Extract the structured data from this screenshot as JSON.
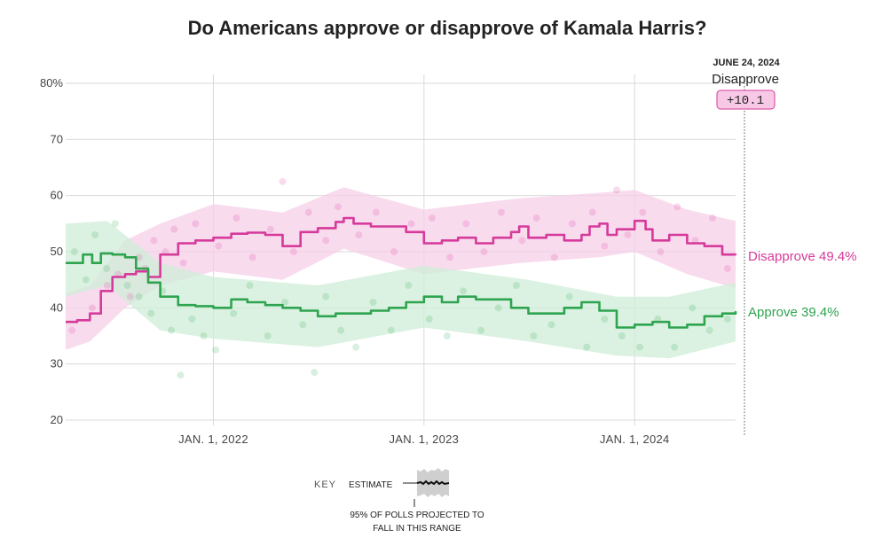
{
  "chart_data": {
    "type": "line",
    "title": "Do Americans approve or disapprove of Kamala Harris?",
    "y_ticks": [
      "20",
      "30",
      "40",
      "50",
      "60",
      "70",
      "80%"
    ],
    "ylim": [
      20,
      80
    ],
    "x_ticks": [
      "JAN. 1, 2022",
      "JAN. 1, 2023",
      "JAN. 1, 2024"
    ],
    "xlim": [
      "2021-04-20",
      "2024-06-24"
    ],
    "grid": true,
    "series": [
      {
        "name": "Disapprove",
        "color": "#d63a9a",
        "band_color": "#f7cfe8",
        "end_label": "Disapprove 49.4%",
        "points": [
          [
            "2021-04-20",
            37.5
          ],
          [
            "2021-05-10",
            37.8
          ],
          [
            "2021-06-01",
            39
          ],
          [
            "2021-06-20",
            43
          ],
          [
            "2021-07-10",
            45.5
          ],
          [
            "2021-08-01",
            46
          ],
          [
            "2021-08-20",
            46.5
          ],
          [
            "2021-09-10",
            45.5
          ],
          [
            "2021-10-01",
            49.5
          ],
          [
            "2021-11-01",
            51.5
          ],
          [
            "2021-12-01",
            52
          ],
          [
            "2022-01-01",
            52.5
          ],
          [
            "2022-02-01",
            53.2
          ],
          [
            "2022-03-01",
            53.4
          ],
          [
            "2022-04-01",
            53
          ],
          [
            "2022-05-01",
            51
          ],
          [
            "2022-06-01",
            53.5
          ],
          [
            "2022-07-01",
            54.2
          ],
          [
            "2022-08-01",
            55.3
          ],
          [
            "2022-08-15",
            56
          ],
          [
            "2022-09-01",
            55
          ],
          [
            "2022-10-01",
            54.5
          ],
          [
            "2022-11-01",
            54.5
          ],
          [
            "2022-12-01",
            53.5
          ],
          [
            "2023-01-01",
            51.5
          ],
          [
            "2023-02-01",
            52
          ],
          [
            "2023-03-01",
            52.5
          ],
          [
            "2023-04-01",
            51.5
          ],
          [
            "2023-05-01",
            52.5
          ],
          [
            "2023-06-01",
            53.5
          ],
          [
            "2023-06-15",
            54.5
          ],
          [
            "2023-07-01",
            52.5
          ],
          [
            "2023-08-01",
            53
          ],
          [
            "2023-09-01",
            52
          ],
          [
            "2023-10-01",
            53
          ],
          [
            "2023-10-15",
            54.5
          ],
          [
            "2023-11-01",
            55
          ],
          [
            "2023-11-15",
            53
          ],
          [
            "2023-12-01",
            54
          ],
          [
            "2024-01-01",
            55.5
          ],
          [
            "2024-01-20",
            54
          ],
          [
            "2024-02-01",
            52
          ],
          [
            "2024-03-01",
            53
          ],
          [
            "2024-04-01",
            51.5
          ],
          [
            "2024-05-01",
            51
          ],
          [
            "2024-06-01",
            49.5
          ],
          [
            "2024-06-24",
            49.4
          ]
        ],
        "band_lower": [
          [
            "2021-04-20",
            32.5
          ],
          [
            "2021-06-01",
            34
          ],
          [
            "2021-08-01",
            40
          ],
          [
            "2021-10-01",
            44
          ],
          [
            "2022-01-01",
            46.5
          ],
          [
            "2022-05-01",
            45
          ],
          [
            "2022-08-15",
            50.5
          ],
          [
            "2023-01-01",
            46
          ],
          [
            "2023-06-15",
            48
          ],
          [
            "2023-11-01",
            49
          ],
          [
            "2024-01-01",
            50
          ],
          [
            "2024-04-01",
            46
          ],
          [
            "2024-06-24",
            43.5
          ]
        ],
        "band_upper": [
          [
            "2021-04-20",
            42.5
          ],
          [
            "2021-06-01",
            44
          ],
          [
            "2021-08-01",
            52
          ],
          [
            "2021-10-01",
            55
          ],
          [
            "2022-01-01",
            58.5
          ],
          [
            "2022-05-01",
            57
          ],
          [
            "2022-08-15",
            61.5
          ],
          [
            "2023-01-01",
            57.5
          ],
          [
            "2023-06-15",
            59.5
          ],
          [
            "2023-11-01",
            60.5
          ],
          [
            "2024-01-01",
            61
          ],
          [
            "2024-04-01",
            57.5
          ],
          [
            "2024-06-24",
            55.5
          ]
        ],
        "polls": [
          [
            "2021-05-01",
            36
          ],
          [
            "2021-06-05",
            40
          ],
          [
            "2021-07-01",
            44
          ],
          [
            "2021-07-20",
            46
          ],
          [
            "2021-08-10",
            42
          ],
          [
            "2021-08-25",
            49
          ],
          [
            "2021-09-05",
            47
          ],
          [
            "2021-09-20",
            52
          ],
          [
            "2021-10-10",
            50
          ],
          [
            "2021-10-25",
            54
          ],
          [
            "2021-11-10",
            48
          ],
          [
            "2021-12-01",
            55
          ],
          [
            "2022-01-10",
            51
          ],
          [
            "2022-02-10",
            56
          ],
          [
            "2022-03-10",
            49
          ],
          [
            "2022-04-10",
            54
          ],
          [
            "2022-05-01",
            62.5
          ],
          [
            "2022-05-20",
            50
          ],
          [
            "2022-06-15",
            57
          ],
          [
            "2022-07-15",
            52
          ],
          [
            "2022-08-05",
            58
          ],
          [
            "2022-09-10",
            53
          ],
          [
            "2022-10-10",
            57
          ],
          [
            "2022-11-10",
            50
          ],
          [
            "2022-12-10",
            55
          ],
          [
            "2023-01-15",
            56
          ],
          [
            "2023-02-15",
            49
          ],
          [
            "2023-03-15",
            55
          ],
          [
            "2023-04-15",
            50
          ],
          [
            "2023-05-15",
            57
          ],
          [
            "2023-06-20",
            52
          ],
          [
            "2023-07-15",
            56
          ],
          [
            "2023-08-15",
            49
          ],
          [
            "2023-09-15",
            55
          ],
          [
            "2023-10-20",
            57
          ],
          [
            "2023-11-10",
            51
          ],
          [
            "2023-12-01",
            61
          ],
          [
            "2023-12-20",
            53
          ],
          [
            "2024-01-15",
            57
          ],
          [
            "2024-02-15",
            50
          ],
          [
            "2024-03-15",
            58
          ],
          [
            "2024-04-15",
            52
          ],
          [
            "2024-05-15",
            56
          ],
          [
            "2024-06-10",
            47
          ]
        ]
      },
      {
        "name": "Approve",
        "color": "#2ea44f",
        "band_color": "#cfeed8",
        "end_label": "Approve 39.4%",
        "points": [
          [
            "2021-04-20",
            48
          ],
          [
            "2021-05-10",
            48
          ],
          [
            "2021-05-20",
            49.5
          ],
          [
            "2021-06-05",
            48
          ],
          [
            "2021-06-20",
            49.7
          ],
          [
            "2021-07-10",
            49.5
          ],
          [
            "2021-08-01",
            49
          ],
          [
            "2021-08-20",
            47
          ],
          [
            "2021-09-10",
            44.5
          ],
          [
            "2021-10-01",
            42
          ],
          [
            "2021-11-01",
            40.5
          ],
          [
            "2021-12-01",
            40.3
          ],
          [
            "2022-01-01",
            40
          ],
          [
            "2022-02-01",
            41.5
          ],
          [
            "2022-03-01",
            41
          ],
          [
            "2022-04-01",
            40.5
          ],
          [
            "2022-05-01",
            40
          ],
          [
            "2022-06-01",
            39.5
          ],
          [
            "2022-07-01",
            38.5
          ],
          [
            "2022-08-01",
            39
          ],
          [
            "2022-09-01",
            39
          ],
          [
            "2022-10-01",
            39.5
          ],
          [
            "2022-11-01",
            40
          ],
          [
            "2022-12-01",
            41
          ],
          [
            "2023-01-01",
            42
          ],
          [
            "2023-02-01",
            41
          ],
          [
            "2023-03-01",
            42
          ],
          [
            "2023-04-01",
            41.5
          ],
          [
            "2023-05-01",
            41.5
          ],
          [
            "2023-06-01",
            40
          ],
          [
            "2023-07-01",
            39
          ],
          [
            "2023-08-01",
            39
          ],
          [
            "2023-09-01",
            40
          ],
          [
            "2023-10-01",
            41
          ],
          [
            "2023-11-01",
            39.5
          ],
          [
            "2023-12-01",
            36.5
          ],
          [
            "2024-01-01",
            37
          ],
          [
            "2024-02-01",
            37.5
          ],
          [
            "2024-03-01",
            36.5
          ],
          [
            "2024-04-01",
            37
          ],
          [
            "2024-05-01",
            38.5
          ],
          [
            "2024-06-01",
            39
          ],
          [
            "2024-06-24",
            39.4
          ]
        ],
        "band_lower": [
          [
            "2021-04-20",
            42
          ],
          [
            "2021-07-01",
            44
          ],
          [
            "2021-10-01",
            36
          ],
          [
            "2022-01-01",
            34.5
          ],
          [
            "2022-07-01",
            33
          ],
          [
            "2023-01-01",
            36.5
          ],
          [
            "2023-07-01",
            34
          ],
          [
            "2023-12-01",
            31.5
          ],
          [
            "2024-03-01",
            31
          ],
          [
            "2024-06-24",
            34
          ]
        ],
        "band_upper": [
          [
            "2021-04-20",
            55
          ],
          [
            "2021-07-01",
            55.5
          ],
          [
            "2021-10-01",
            48
          ],
          [
            "2022-01-01",
            45.5
          ],
          [
            "2022-07-01",
            44
          ],
          [
            "2023-01-01",
            47.5
          ],
          [
            "2023-07-01",
            45
          ],
          [
            "2023-12-01",
            42
          ],
          [
            "2024-03-01",
            42
          ],
          [
            "2024-06-24",
            44.5
          ]
        ],
        "polls": [
          [
            "2021-05-05",
            50
          ],
          [
            "2021-05-25",
            45
          ],
          [
            "2021-06-10",
            53
          ],
          [
            "2021-06-30",
            47
          ],
          [
            "2021-07-15",
            55
          ],
          [
            "2021-08-05",
            44
          ],
          [
            "2021-08-25",
            42
          ],
          [
            "2021-09-15",
            39
          ],
          [
            "2021-10-05",
            43
          ],
          [
            "2021-10-20",
            36
          ],
          [
            "2021-11-05",
            28
          ],
          [
            "2021-11-25",
            38
          ],
          [
            "2021-12-15",
            35
          ],
          [
            "2022-01-05",
            32.5
          ],
          [
            "2022-02-05",
            39
          ],
          [
            "2022-03-05",
            44
          ],
          [
            "2022-04-05",
            35
          ],
          [
            "2022-05-05",
            41
          ],
          [
            "2022-06-05",
            37
          ],
          [
            "2022-06-25",
            28.5
          ],
          [
            "2022-07-15",
            42
          ],
          [
            "2022-08-10",
            36
          ],
          [
            "2022-09-05",
            33
          ],
          [
            "2022-10-05",
            41
          ],
          [
            "2022-11-05",
            36
          ],
          [
            "2022-12-05",
            44
          ],
          [
            "2023-01-10",
            38
          ],
          [
            "2023-02-10",
            35
          ],
          [
            "2023-03-10",
            43
          ],
          [
            "2023-04-10",
            36
          ],
          [
            "2023-05-10",
            40
          ],
          [
            "2023-06-10",
            44
          ],
          [
            "2023-07-10",
            35
          ],
          [
            "2023-08-10",
            37
          ],
          [
            "2023-09-10",
            42
          ],
          [
            "2023-10-10",
            33
          ],
          [
            "2023-11-10",
            38
          ],
          [
            "2023-12-10",
            35
          ],
          [
            "2024-01-10",
            33
          ],
          [
            "2024-02-10",
            38
          ],
          [
            "2024-03-10",
            33
          ],
          [
            "2024-04-10",
            40
          ],
          [
            "2024-05-10",
            36
          ],
          [
            "2024-06-10",
            38
          ]
        ]
      }
    ],
    "annotation": {
      "date_label": "JUNE 24, 2024",
      "leader": "Disapprove",
      "margin": "+10.1"
    },
    "key": {
      "label": "KEY",
      "estimate_label": "ESTIMATE",
      "range_label_line1": "95% OF POLLS PROJECTED TO",
      "range_label_line2": "FALL IN THIS RANGE"
    }
  }
}
